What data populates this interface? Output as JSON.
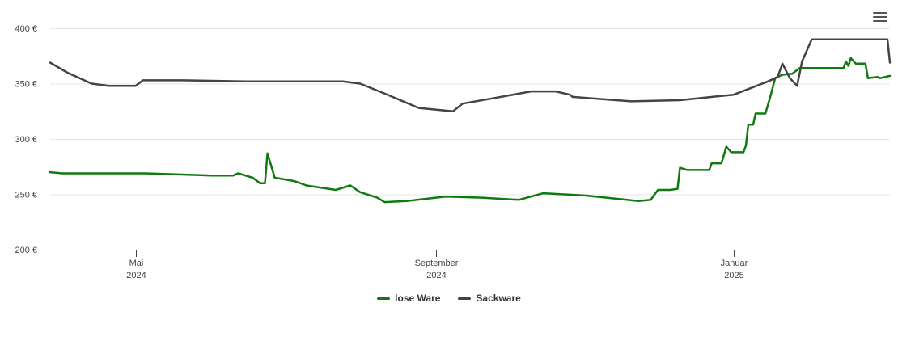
{
  "menu_icon": "hamburger-menu-icon",
  "chart_data": {
    "type": "line",
    "currency": "€",
    "y_ticks": [
      "200 €",
      "250 €",
      "300 €",
      "350 €",
      "400 €"
    ],
    "ylim": [
      200,
      400
    ],
    "grid": true,
    "x_ticks": [
      {
        "month": "Mai",
        "year": "2024",
        "date": "2024-05-01"
      },
      {
        "month": "September",
        "year": "2024",
        "date": "2024-09-01"
      },
      {
        "month": "Januar",
        "year": "2025",
        "date": "2025-01-01"
      }
    ],
    "xlim": [
      "2024-03-27",
      "2025-03-06"
    ],
    "legend_position": "bottom-center",
    "series": [
      {
        "name": "lose Ware",
        "color": "#0f7a0f",
        "points": [
          [
            "2024-03-27",
            270
          ],
          [
            "2024-04-01",
            269
          ],
          [
            "2024-05-05",
            269
          ],
          [
            "2024-06-01",
            267
          ],
          [
            "2024-06-10",
            267
          ],
          [
            "2024-06-12",
            269
          ],
          [
            "2024-06-18",
            265
          ],
          [
            "2024-06-21",
            260
          ],
          [
            "2024-06-23",
            260
          ],
          [
            "2024-06-24",
            287
          ],
          [
            "2024-06-27",
            265
          ],
          [
            "2024-07-05",
            262
          ],
          [
            "2024-07-10",
            258
          ],
          [
            "2024-07-22",
            254
          ],
          [
            "2024-07-28",
            258
          ],
          [
            "2024-08-01",
            252
          ],
          [
            "2024-08-08",
            247
          ],
          [
            "2024-08-11",
            243
          ],
          [
            "2024-08-20",
            244
          ],
          [
            "2024-09-05",
            248
          ],
          [
            "2024-09-20",
            247
          ],
          [
            "2024-10-05",
            245
          ],
          [
            "2024-10-15",
            251
          ],
          [
            "2024-11-01",
            249
          ],
          [
            "2024-11-23",
            244
          ],
          [
            "2024-11-28",
            245
          ],
          [
            "2024-12-01",
            254
          ],
          [
            "2024-12-06",
            254
          ],
          [
            "2024-12-09",
            255
          ],
          [
            "2024-12-10",
            274
          ],
          [
            "2024-12-13",
            272
          ],
          [
            "2024-12-22",
            272
          ],
          [
            "2024-12-23",
            278
          ],
          [
            "2024-12-27",
            278
          ],
          [
            "2024-12-29",
            293
          ],
          [
            "2024-12-31",
            288
          ],
          [
            "2025-01-05",
            288
          ],
          [
            "2025-01-06",
            294
          ],
          [
            "2025-01-07",
            313
          ],
          [
            "2025-01-09",
            313
          ],
          [
            "2025-01-10",
            323
          ],
          [
            "2025-01-14",
            323
          ],
          [
            "2025-01-16",
            338
          ],
          [
            "2025-01-18",
            355
          ],
          [
            "2025-01-21",
            358
          ],
          [
            "2025-01-25",
            359
          ],
          [
            "2025-01-28",
            364
          ],
          [
            "2025-02-15",
            364
          ],
          [
            "2025-02-16",
            370
          ],
          [
            "2025-02-17",
            366
          ],
          [
            "2025-02-18",
            373
          ],
          [
            "2025-02-20",
            368
          ],
          [
            "2025-02-24",
            368
          ],
          [
            "2025-02-25",
            355
          ],
          [
            "2025-03-01",
            356
          ],
          [
            "2025-03-02",
            355
          ],
          [
            "2025-03-06",
            357
          ]
        ]
      },
      {
        "name": "Sackware",
        "color": "#444444",
        "points": [
          [
            "2024-03-27",
            369
          ],
          [
            "2024-04-03",
            360
          ],
          [
            "2024-04-13",
            350
          ],
          [
            "2024-04-20",
            348
          ],
          [
            "2024-05-01",
            348
          ],
          [
            "2024-05-04",
            353
          ],
          [
            "2024-05-20",
            353
          ],
          [
            "2024-06-15",
            352
          ],
          [
            "2024-07-25",
            352
          ],
          [
            "2024-08-01",
            350
          ],
          [
            "2024-08-10",
            342
          ],
          [
            "2024-08-25",
            328
          ],
          [
            "2024-09-08",
            325
          ],
          [
            "2024-09-12",
            332
          ],
          [
            "2024-09-25",
            337
          ],
          [
            "2024-10-10",
            343
          ],
          [
            "2024-10-20",
            343
          ],
          [
            "2024-10-26",
            340
          ],
          [
            "2024-10-27",
            338
          ],
          [
            "2024-11-20",
            334
          ],
          [
            "2024-12-10",
            335
          ],
          [
            "2025-01-01",
            340
          ],
          [
            "2025-01-15",
            352
          ],
          [
            "2025-01-19",
            356
          ],
          [
            "2025-01-21",
            368
          ],
          [
            "2025-01-24",
            355
          ],
          [
            "2025-01-27",
            348
          ],
          [
            "2025-01-29",
            370
          ],
          [
            "2025-02-02",
            390
          ],
          [
            "2025-03-05",
            390
          ],
          [
            "2025-03-06",
            369
          ]
        ]
      }
    ]
  }
}
